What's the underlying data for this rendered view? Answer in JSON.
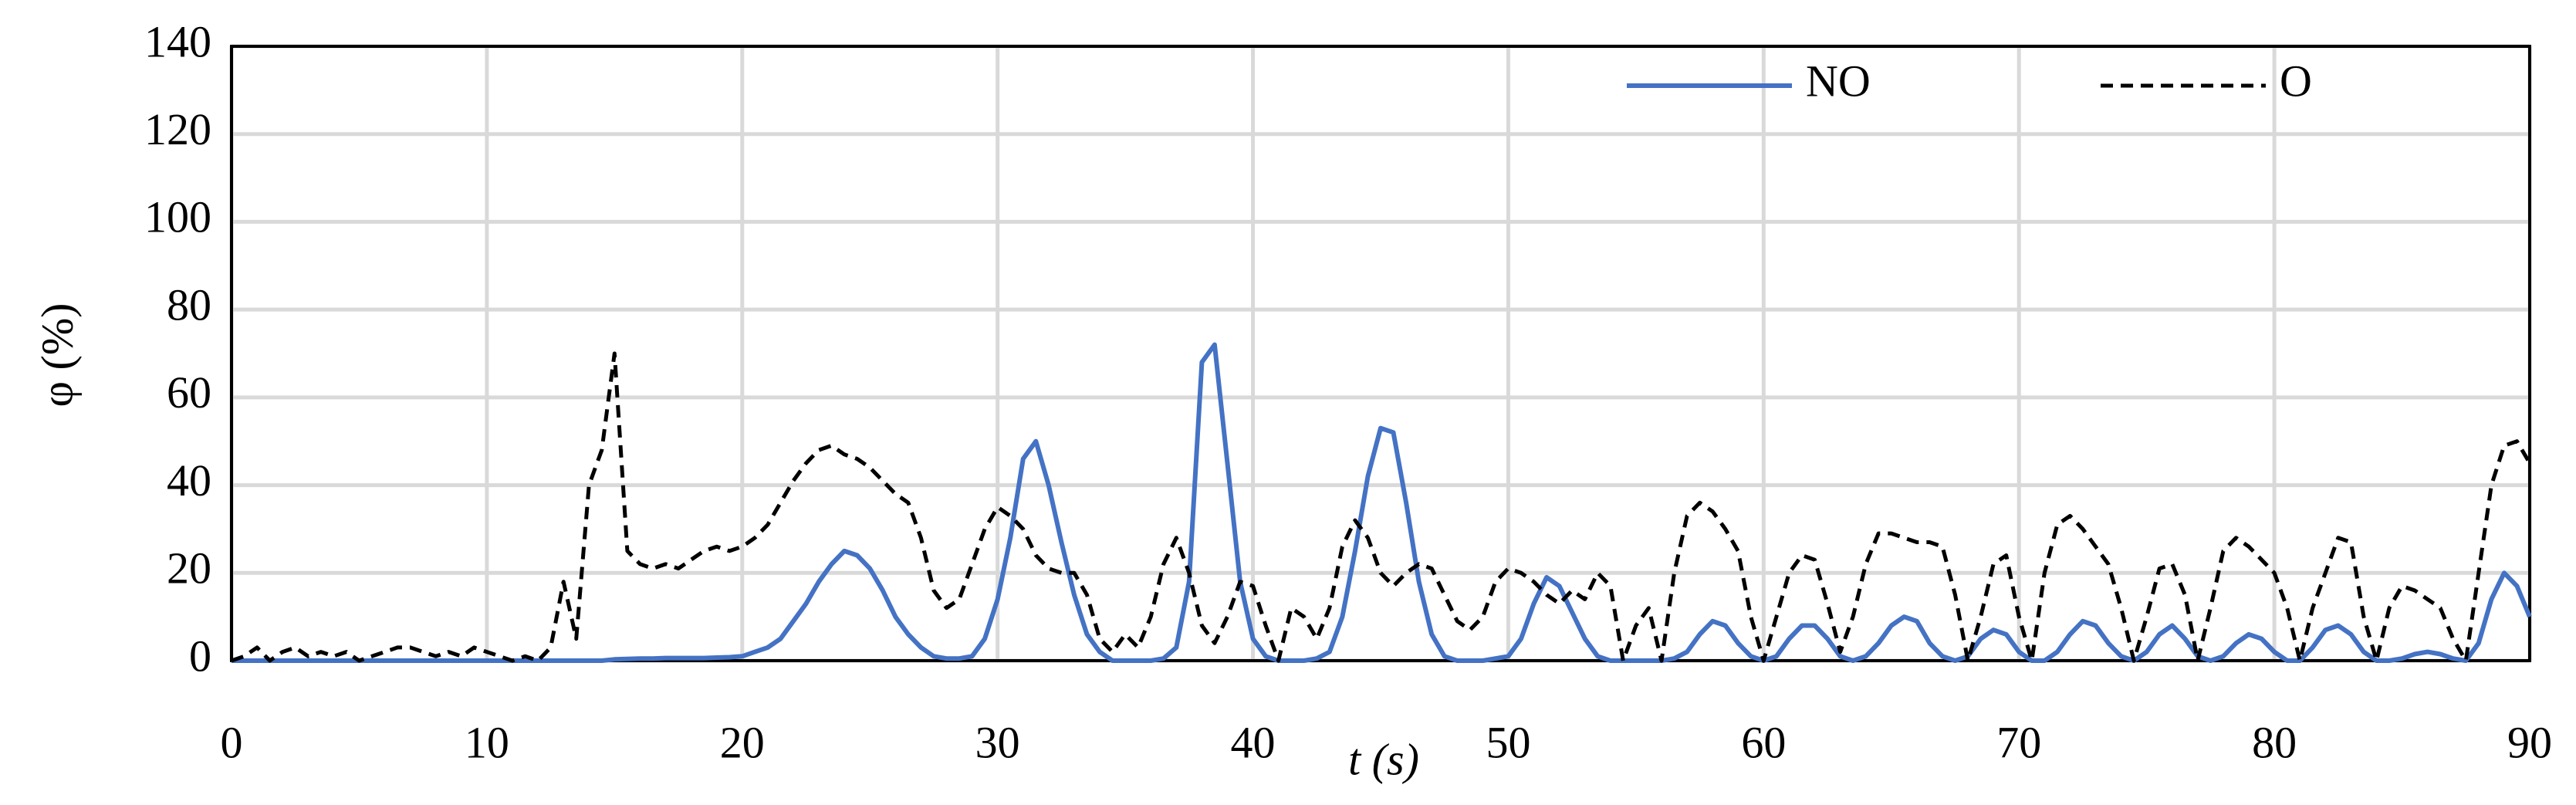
{
  "chart_data": {
    "type": "line",
    "ylabel": "φ (%)",
    "xlabel": "t (s)",
    "xlim": [
      0,
      90
    ],
    "xticks": [
      0,
      10,
      20,
      30,
      40,
      50,
      60,
      70,
      80,
      90
    ],
    "ylim": [
      0,
      140
    ],
    "yticks": [
      0,
      20,
      40,
      60,
      80,
      100,
      120,
      140
    ],
    "grid": true,
    "legend": "top-right",
    "x": [
      0,
      0.5,
      1,
      1.5,
      2,
      2.5,
      3,
      3.5,
      4,
      4.5,
      5,
      5.5,
      6,
      6.5,
      7,
      7.5,
      8,
      8.5,
      9,
      9.5,
      10,
      10.5,
      11,
      11.5,
      12,
      12.5,
      13,
      13.5,
      14,
      14.5,
      15,
      15.5,
      16,
      16.5,
      17,
      17.5,
      18,
      18.5,
      19,
      19.5,
      20,
      20.5,
      21,
      21.5,
      22,
      22.5,
      23,
      23.5,
      24,
      24.5,
      25,
      25.5,
      26,
      26.5,
      27,
      27.5,
      28,
      28.5,
      29,
      29.5,
      30,
      30.5,
      31,
      31.5,
      32,
      32.5,
      33,
      33.5,
      34,
      34.5,
      35,
      35.5,
      36,
      36.5,
      37,
      37.5,
      38,
      38.5,
      39,
      39.5,
      40,
      40.5,
      41,
      41.5,
      42,
      42.5,
      43,
      43.5,
      44,
      44.5,
      45,
      45.5,
      46,
      46.5,
      47,
      47.5,
      48,
      48.5,
      49,
      49.5,
      50,
      50.5,
      51,
      51.5,
      52,
      52.5,
      53,
      53.5,
      54,
      54.5,
      55,
      55.5,
      56,
      56.5,
      57,
      57.5,
      58,
      58.5,
      59,
      59.5,
      60,
      60.5,
      61,
      61.5,
      62,
      62.5,
      63,
      63.5,
      64,
      64.5,
      65,
      65.5,
      66,
      66.5,
      67,
      67.5,
      68,
      68.5,
      69,
      69.5,
      70,
      70.5,
      71,
      71.5,
      72,
      72.5,
      73,
      73.5,
      74,
      74.5,
      75,
      75.5,
      76,
      76.5,
      77,
      77.5,
      78,
      78.5,
      79,
      79.5,
      80,
      80.5,
      81,
      81.5,
      82,
      82.5,
      83,
      83.5,
      84,
      84.5,
      85,
      85.5,
      86,
      86.5,
      87,
      87.5,
      88,
      88.5,
      89,
      89.5,
      90
    ],
    "series": [
      {
        "name": "NO",
        "color": "#4472c4",
        "dash": "solid",
        "values": [
          0,
          0,
          0,
          0,
          0,
          0,
          0,
          0,
          0,
          0,
          0,
          0,
          0,
          0,
          0,
          0,
          0,
          0,
          0,
          0,
          0,
          0,
          0,
          0,
          0,
          0,
          0,
          0,
          0,
          0,
          0.3,
          0.4,
          0.5,
          0.5,
          0.6,
          0.6,
          0.6,
          0.6,
          0.7,
          0.8,
          1,
          2,
          3,
          5,
          9,
          13,
          18,
          22,
          25,
          24,
          21,
          16,
          10,
          6,
          3,
          1,
          0.5,
          0.5,
          1,
          5,
          14,
          28,
          46,
          50,
          40,
          27,
          15,
          6,
          2,
          0,
          0,
          0,
          0,
          0.5,
          3,
          18,
          68,
          72,
          45,
          18,
          5,
          1,
          0,
          0,
          0,
          0.5,
          2,
          10,
          25,
          42,
          53,
          52,
          36,
          18,
          6,
          1,
          0,
          0,
          0,
          0.5,
          1,
          5,
          13,
          19,
          17,
          11,
          5,
          1,
          0,
          0,
          0,
          0,
          0,
          0.5,
          2,
          6,
          9,
          8,
          4,
          1,
          0,
          1,
          5,
          8,
          8,
          5,
          1,
          0,
          1,
          4,
          8,
          10,
          9,
          4,
          1,
          0,
          1,
          5,
          7,
          6,
          2,
          0,
          0,
          2,
          6,
          9,
          8,
          4,
          1,
          0,
          2,
          6,
          8,
          5,
          1,
          0,
          1,
          4,
          6,
          5,
          2,
          0,
          0,
          3,
          7,
          8,
          6,
          2,
          0,
          0,
          0.5,
          1.5,
          2,
          1.5,
          0.5,
          0,
          4,
          14,
          20,
          17,
          10
        ]
      },
      {
        "name": "O",
        "color": "#000000",
        "dash": "dashed",
        "values": [
          0,
          1,
          3,
          0,
          2,
          3,
          1,
          2,
          1,
          2,
          0,
          1,
          2,
          3,
          3,
          2,
          1,
          2,
          1,
          3,
          2,
          1,
          0,
          1,
          0,
          3,
          18,
          5,
          40,
          48,
          70,
          25,
          22,
          21,
          22,
          21,
          23,
          25,
          26,
          25,
          26,
          28,
          31,
          36,
          41,
          45,
          48,
          49,
          47,
          46,
          44,
          41,
          38,
          36,
          28,
          16,
          12,
          14,
          22,
          30,
          35,
          33,
          30,
          24,
          21,
          20,
          20,
          15,
          5,
          2,
          6,
          3,
          10,
          22,
          28,
          20,
          8,
          4,
          10,
          18,
          17,
          8,
          0,
          12,
          10,
          5,
          12,
          26,
          32,
          28,
          20,
          17,
          20,
          22,
          21,
          15,
          9,
          7,
          10,
          18,
          21,
          20,
          18,
          15,
          13,
          16,
          14,
          20,
          17,
          0,
          8,
          12,
          0,
          20,
          33,
          36,
          34,
          30,
          25,
          10,
          0,
          10,
          20,
          24,
          23,
          13,
          2,
          10,
          22,
          29,
          29,
          28,
          27,
          27,
          26,
          15,
          0,
          10,
          22,
          24,
          10,
          0,
          20,
          31,
          33,
          30,
          26,
          22,
          12,
          0,
          10,
          21,
          22,
          15,
          0,
          12,
          25,
          28,
          26,
          23,
          20,
          12,
          0,
          12,
          20,
          28,
          27,
          10,
          0,
          12,
          17,
          16,
          14,
          12,
          5,
          0,
          20,
          40,
          49,
          50,
          45
        ]
      }
    ]
  }
}
